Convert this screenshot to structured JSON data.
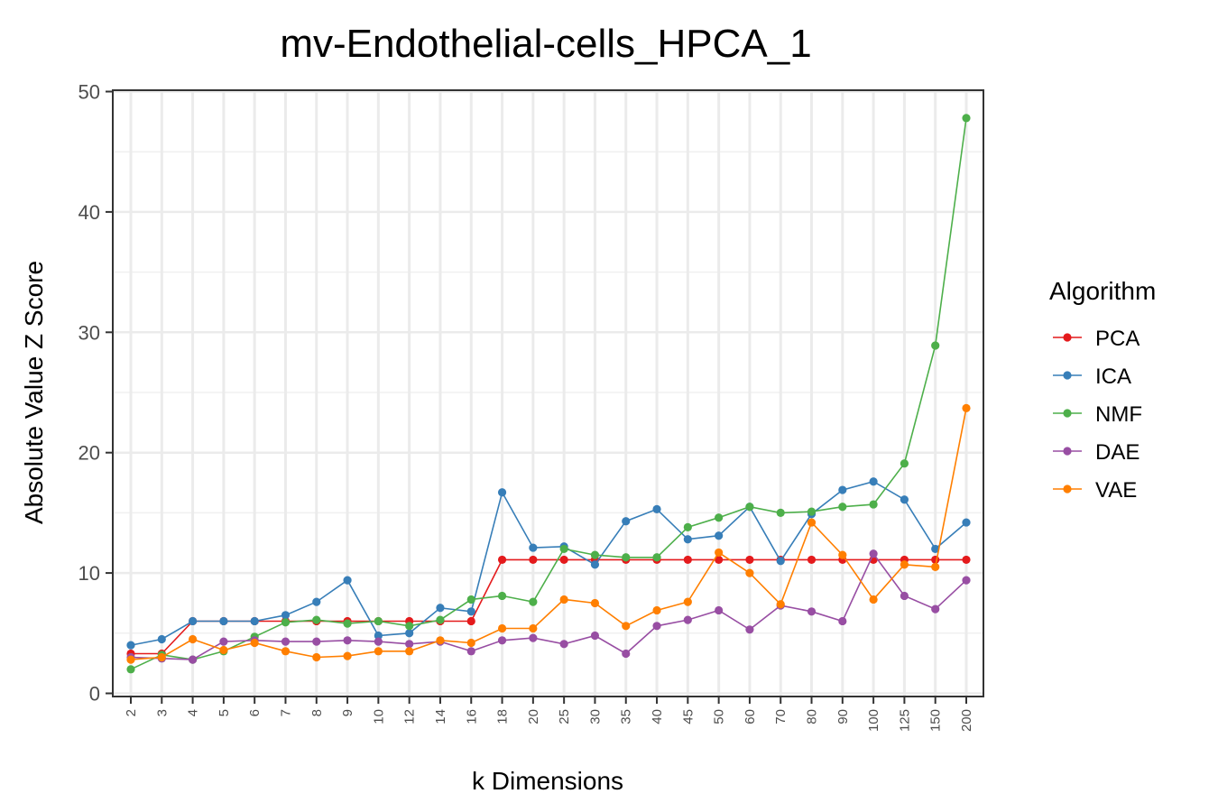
{
  "chart_data": {
    "type": "line",
    "title": "mv-Endothelial-cells_HPCA_1",
    "xlabel": "k Dimensions",
    "ylabel": "Absolute Value Z Score",
    "categories": [
      "2",
      "3",
      "4",
      "5",
      "6",
      "7",
      "8",
      "9",
      "10",
      "12",
      "14",
      "16",
      "18",
      "20",
      "25",
      "30",
      "35",
      "40",
      "45",
      "50",
      "60",
      "70",
      "80",
      "90",
      "100",
      "125",
      "150",
      "200"
    ],
    "ylim": [
      0,
      50
    ],
    "yticks": [
      "0",
      "10",
      "20",
      "30",
      "40",
      "50"
    ],
    "grid": true,
    "legend": {
      "title": "Algorithm",
      "position": "right"
    },
    "series": [
      {
        "name": "PCA",
        "color": "#E41A1C",
        "values": [
          3.3,
          3.3,
          6.0,
          6.0,
          6.0,
          6.0,
          6.0,
          6.0,
          6.0,
          6.0,
          6.0,
          6.0,
          11.1,
          11.1,
          11.1,
          11.1,
          11.1,
          11.1,
          11.1,
          11.1,
          11.1,
          11.1,
          11.1,
          11.1,
          11.1,
          11.1,
          11.1,
          11.1
        ]
      },
      {
        "name": "ICA",
        "color": "#377EB8",
        "values": [
          4.0,
          4.5,
          6.0,
          6.0,
          6.0,
          6.5,
          7.6,
          9.4,
          4.8,
          5.0,
          7.1,
          6.8,
          16.7,
          12.1,
          12.2,
          10.7,
          14.3,
          15.3,
          12.8,
          13.1,
          15.5,
          11.0,
          14.9,
          16.9,
          17.6,
          16.1,
          12.0,
          14.2
        ]
      },
      {
        "name": "NMF",
        "color": "#4DAF4A",
        "values": [
          2.0,
          3.2,
          2.8,
          3.5,
          4.7,
          5.9,
          6.1,
          5.8,
          6.0,
          5.6,
          6.1,
          7.8,
          8.1,
          7.6,
          12.0,
          11.5,
          11.3,
          11.3,
          13.8,
          14.6,
          15.5,
          15.0,
          15.1,
          15.5,
          15.7,
          19.1,
          28.9,
          47.8
        ]
      },
      {
        "name": "DAE",
        "color": "#984EA3",
        "values": [
          3.0,
          2.9,
          2.8,
          4.3,
          4.4,
          4.3,
          4.3,
          4.4,
          4.3,
          4.1,
          4.3,
          3.5,
          4.4,
          4.6,
          4.1,
          4.8,
          3.3,
          5.6,
          6.1,
          6.9,
          5.3,
          7.3,
          6.8,
          6.0,
          11.6,
          8.1,
          7.0,
          9.4
        ]
      },
      {
        "name": "VAE",
        "color": "#FF7F00",
        "values": [
          2.8,
          3.0,
          4.5,
          3.6,
          4.2,
          3.5,
          3.0,
          3.1,
          3.5,
          3.5,
          4.4,
          4.2,
          5.4,
          5.4,
          7.8,
          7.5,
          5.6,
          6.9,
          7.6,
          11.7,
          10.0,
          7.4,
          14.2,
          11.5,
          7.8,
          10.7,
          10.5,
          23.7
        ]
      }
    ]
  }
}
